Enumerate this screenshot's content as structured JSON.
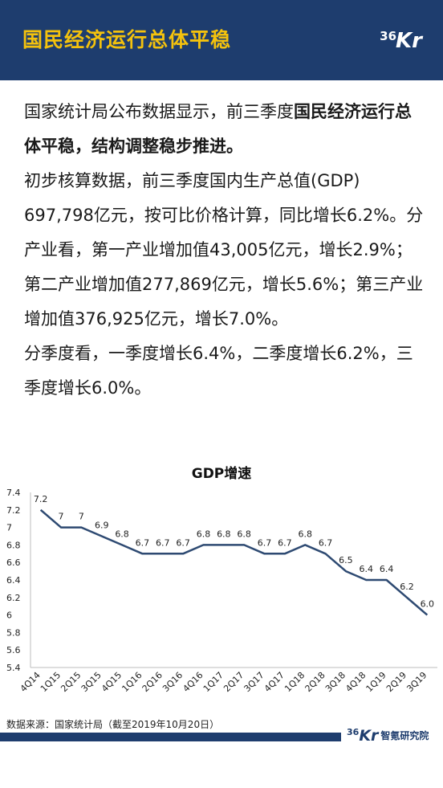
{
  "header": {
    "title": "国民经济运行总体平稳",
    "logo_number": "36",
    "logo_letter": "Kr"
  },
  "article": {
    "p1_part1": "国家统计局公布数据显示，前三季度",
    "p1_bold": "国民经济运行总体平稳，结构调整稳步推进。",
    "p2": "初步核算数据，前三季度国内生产总值(GDP) 697,798亿元，按可比价格计算，同比增长6.2%。分产业看，第一产业增加值43,005亿元，增长2.9%；第二产业增加值277,869亿元，增长5.6%；第三产业增加值376,925亿元，增长7.0%。",
    "p3": "分季度看，一季度增长6.4%，二季度增长6.2%，三季度增长6.0%。"
  },
  "chart_data": {
    "type": "line",
    "title": "GDP增速",
    "xlabel": "",
    "ylabel": "",
    "categories": [
      "4Q14",
      "1Q15",
      "2Q15",
      "3Q15",
      "4Q15",
      "1Q16",
      "2Q16",
      "3Q16",
      "4Q16",
      "1Q17",
      "2Q17",
      "3Q17",
      "4Q17",
      "1Q18",
      "2Q18",
      "3Q18",
      "4Q18",
      "1Q19",
      "2Q19",
      "3Q19"
    ],
    "values": [
      7.2,
      7.0,
      7.0,
      6.9,
      6.8,
      6.7,
      6.7,
      6.7,
      6.8,
      6.8,
      6.8,
      6.7,
      6.7,
      6.8,
      6.7,
      6.5,
      6.4,
      6.4,
      6.2,
      6.0
    ],
    "value_labels": [
      "7.2",
      "7",
      "7",
      "6.9",
      "6.8",
      "6.7",
      "6.7",
      "6.7",
      "6.8",
      "6.8",
      "6.8",
      "6.7",
      "6.7",
      "6.8",
      "6.7",
      "6.5",
      "6.4",
      "6.4",
      "6.2",
      "6.0"
    ],
    "ylim": [
      5.4,
      7.4
    ],
    "yticks": [
      "7.4",
      "7.2",
      "7",
      "6.8",
      "6.6",
      "6.4",
      "6.2",
      "6",
      "5.8",
      "5.6",
      "5.4"
    ],
    "ytick_values": [
      7.4,
      7.2,
      7.0,
      6.8,
      6.6,
      6.4,
      6.2,
      6.0,
      5.8,
      5.6,
      5.4
    ],
    "grid": false,
    "line_color": "#2e4a72"
  },
  "footer": {
    "source": "数据来源：国家统计局（截至2019年10月20日）",
    "logo_number": "36",
    "logo_letter": "Kr",
    "org": "智氪研究院"
  },
  "colors": {
    "header_bg": "#1e3d6e",
    "title_color": "#f4c20d"
  }
}
